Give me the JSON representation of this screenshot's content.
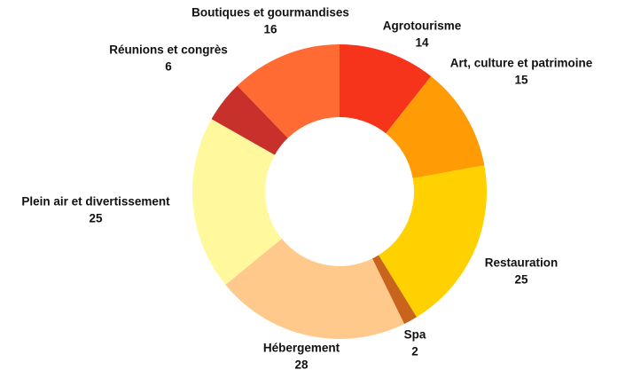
{
  "chart_data": {
    "type": "donut",
    "categories": [
      "Agrotourisme",
      "Art, culture et patrimoine",
      "Restauration",
      "Spa",
      "Hébergement",
      "Plein air et divertissement",
      "Réunions et congrès",
      "Boutiques et gourmandises"
    ],
    "values": [
      14,
      15,
      25,
      2,
      28,
      25,
      6,
      16
    ],
    "colors": [
      "#f6341b",
      "#ff9b05",
      "#ffd100",
      "#c8641c",
      "#ffc98c",
      "#fff89c",
      "#c8302c",
      "#ff6b33"
    ]
  }
}
